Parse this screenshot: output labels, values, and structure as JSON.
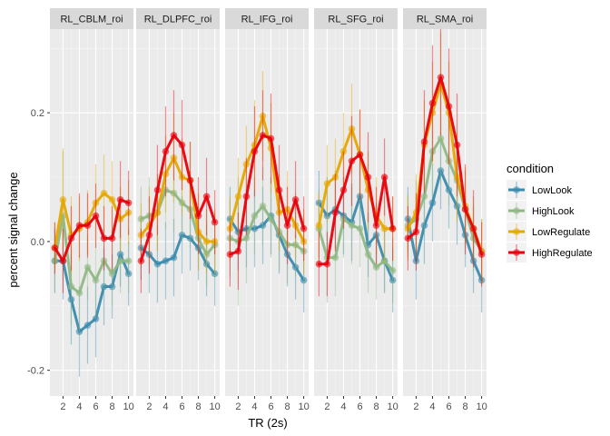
{
  "chart_data": {
    "type": "line",
    "xlabel": "TR (2s)",
    "ylabel": "percent signal change",
    "x": [
      1,
      2,
      3,
      4,
      5,
      6,
      7,
      8,
      9,
      10
    ],
    "x_ticks": [
      2,
      4,
      6,
      8,
      10
    ],
    "y_ticks": [
      -0.2,
      0.0,
      0.2
    ],
    "y_tick_labels": [
      "-0.2",
      "0.0",
      "0.2"
    ],
    "ylim": [
      -0.24,
      0.33
    ],
    "xlim": [
      0.4,
      10.6
    ],
    "grid": true,
    "legend_position": "right",
    "legend_title": "condition",
    "series": [
      {
        "name": "LowLook",
        "color": "#3a8bae"
      },
      {
        "name": "HighLook",
        "color": "#8fb884"
      },
      {
        "name": "LowRegulate",
        "color": "#e5a800"
      },
      {
        "name": "HighRegulate",
        "color": "#e8000b"
      }
    ],
    "panels": [
      {
        "label": "RL_CBLM_roi",
        "values": {
          "LowLook": [
            -0.03,
            -0.03,
            -0.09,
            -0.14,
            -0.13,
            -0.12,
            -0.07,
            -0.07,
            -0.02,
            -0.05
          ],
          "HighLook": [
            -0.03,
            0.04,
            -0.07,
            -0.08,
            -0.04,
            -0.06,
            -0.03,
            -0.05,
            -0.03,
            -0.03
          ],
          "LowRegulate": [
            -0.01,
            0.065,
            0.01,
            0.02,
            0.03,
            0.06,
            0.075,
            0.065,
            0.035,
            0.045
          ],
          "HighRegulate": [
            -0.01,
            -0.03,
            0.005,
            0.025,
            0.025,
            0.04,
            0.005,
            0.005,
            0.065,
            0.06
          ]
        },
        "errors": {
          "LowLook": [
            0.05,
            0.06,
            0.07,
            0.07,
            0.06,
            0.06,
            0.06,
            0.05,
            0.05,
            0.05
          ],
          "HighLook": [
            0.05,
            0.1,
            0.06,
            0.06,
            0.05,
            0.06,
            0.05,
            0.05,
            0.05,
            0.05
          ],
          "LowRegulate": [
            0.04,
            0.08,
            0.06,
            0.05,
            0.05,
            0.06,
            0.06,
            0.06,
            0.05,
            0.05
          ],
          "HighRegulate": [
            0.04,
            0.05,
            0.05,
            0.05,
            0.05,
            0.05,
            0.05,
            0.05,
            0.06,
            0.05
          ]
        }
      },
      {
        "label": "RL_DLPFC_roi",
        "values": {
          "LowLook": [
            -0.01,
            -0.02,
            -0.035,
            -0.03,
            -0.025,
            0.01,
            0.005,
            -0.01,
            -0.035,
            -0.05
          ],
          "HighLook": [
            0.035,
            0.04,
            0.045,
            0.08,
            0.075,
            0.06,
            0.05,
            0.005,
            -0.02,
            -0.005
          ],
          "LowRegulate": [
            0.01,
            0.025,
            0.045,
            0.105,
            0.13,
            0.1,
            0.095,
            0.015,
            0.0,
            0.0
          ],
          "HighRegulate": [
            -0.03,
            0.01,
            0.08,
            0.14,
            0.165,
            0.15,
            0.095,
            0.04,
            0.07,
            0.03
          ]
        },
        "errors": {
          "LowLook": [
            0.05,
            0.06,
            0.06,
            0.06,
            0.06,
            0.06,
            0.05,
            0.05,
            0.05,
            0.05
          ],
          "HighLook": [
            0.05,
            0.06,
            0.06,
            0.06,
            0.06,
            0.06,
            0.06,
            0.05,
            0.05,
            0.05
          ],
          "LowRegulate": [
            0.05,
            0.06,
            0.06,
            0.06,
            0.07,
            0.06,
            0.06,
            0.06,
            0.05,
            0.05
          ],
          "HighRegulate": [
            0.05,
            0.06,
            0.07,
            0.07,
            0.07,
            0.07,
            0.06,
            0.06,
            0.06,
            0.05
          ]
        }
      },
      {
        "label": "RL_IFG_roi",
        "values": {
          "LowLook": [
            0.035,
            0.015,
            0.02,
            0.02,
            0.025,
            0.04,
            0.01,
            -0.02,
            -0.04,
            -0.06
          ],
          "HighLook": [
            0.005,
            0.0,
            0.005,
            0.04,
            0.055,
            0.035,
            0.015,
            -0.005,
            -0.005,
            -0.015
          ],
          "LowRegulate": [
            0.02,
            0.07,
            0.12,
            0.15,
            0.195,
            0.145,
            0.045,
            0.05,
            0.025,
            0.0
          ],
          "HighRegulate": [
            -0.02,
            -0.015,
            0.07,
            0.14,
            0.165,
            0.16,
            0.08,
            0.025,
            0.065,
            0.02
          ]
        },
        "errors": {
          "LowLook": [
            0.05,
            0.06,
            0.06,
            0.06,
            0.06,
            0.06,
            0.06,
            0.05,
            0.05,
            0.05
          ],
          "HighLook": [
            0.06,
            0.1,
            0.07,
            0.06,
            0.06,
            0.06,
            0.06,
            0.06,
            0.05,
            0.05
          ],
          "LowRegulate": [
            0.05,
            0.06,
            0.06,
            0.07,
            0.07,
            0.07,
            0.06,
            0.06,
            0.05,
            0.05
          ],
          "HighRegulate": [
            0.05,
            0.06,
            0.06,
            0.07,
            0.07,
            0.07,
            0.07,
            0.06,
            0.06,
            0.05
          ]
        }
      },
      {
        "label": "RL_SFG_roi",
        "values": {
          "LowLook": [
            0.06,
            0.04,
            0.05,
            0.04,
            0.03,
            0.07,
            -0.005,
            0.01,
            -0.03,
            -0.06
          ],
          "HighLook": [
            0.02,
            -0.025,
            -0.025,
            0.035,
            0.025,
            0.02,
            -0.02,
            -0.04,
            -0.03,
            -0.045
          ],
          "LowRegulate": [
            0.025,
            0.09,
            0.1,
            0.14,
            0.175,
            0.135,
            0.08,
            0.04,
            0.02,
            0.02
          ],
          "HighRegulate": [
            -0.035,
            -0.035,
            0.045,
            0.08,
            0.125,
            0.135,
            0.1,
            0.025,
            0.1,
            0.02
          ]
        },
        "errors": {
          "LowLook": [
            0.05,
            0.06,
            0.06,
            0.06,
            0.06,
            0.06,
            0.05,
            0.05,
            0.05,
            0.05
          ],
          "HighLook": [
            0.06,
            0.07,
            0.06,
            0.06,
            0.06,
            0.06,
            0.06,
            0.05,
            0.05,
            0.05
          ],
          "LowRegulate": [
            0.05,
            0.06,
            0.06,
            0.06,
            0.07,
            0.07,
            0.06,
            0.06,
            0.05,
            0.05
          ],
          "HighRegulate": [
            0.05,
            0.05,
            0.06,
            0.06,
            0.07,
            0.07,
            0.07,
            0.06,
            0.06,
            0.05
          ]
        }
      },
      {
        "label": "RL_SMA_roi",
        "values": {
          "LowLook": [
            0.035,
            -0.03,
            0.025,
            0.06,
            0.11,
            0.08,
            0.055,
            0.01,
            -0.03,
            -0.06
          ],
          "HighLook": [
            0.025,
            0.035,
            0.07,
            0.14,
            0.16,
            0.125,
            0.095,
            0.05,
            0.005,
            -0.015
          ],
          "LowRegulate": [
            0.02,
            0.045,
            0.15,
            0.2,
            0.245,
            0.2,
            0.1,
            0.055,
            0.02,
            -0.015
          ],
          "HighRegulate": [
            0.005,
            0.015,
            0.155,
            0.215,
            0.255,
            0.21,
            0.15,
            0.05,
            0.02,
            -0.02
          ]
        },
        "errors": {
          "LowLook": [
            0.05,
            0.06,
            0.06,
            0.06,
            0.06,
            0.06,
            0.06,
            0.05,
            0.05,
            0.05
          ],
          "HighLook": [
            0.05,
            0.06,
            0.06,
            0.07,
            0.07,
            0.07,
            0.06,
            0.06,
            0.05,
            0.05
          ],
          "LowRegulate": [
            0.05,
            0.06,
            0.07,
            0.08,
            0.08,
            0.08,
            0.07,
            0.06,
            0.05,
            0.05
          ],
          "HighRegulate": [
            0.05,
            0.06,
            0.08,
            0.09,
            0.09,
            0.09,
            0.08,
            0.07,
            0.06,
            0.05
          ]
        }
      }
    ]
  }
}
